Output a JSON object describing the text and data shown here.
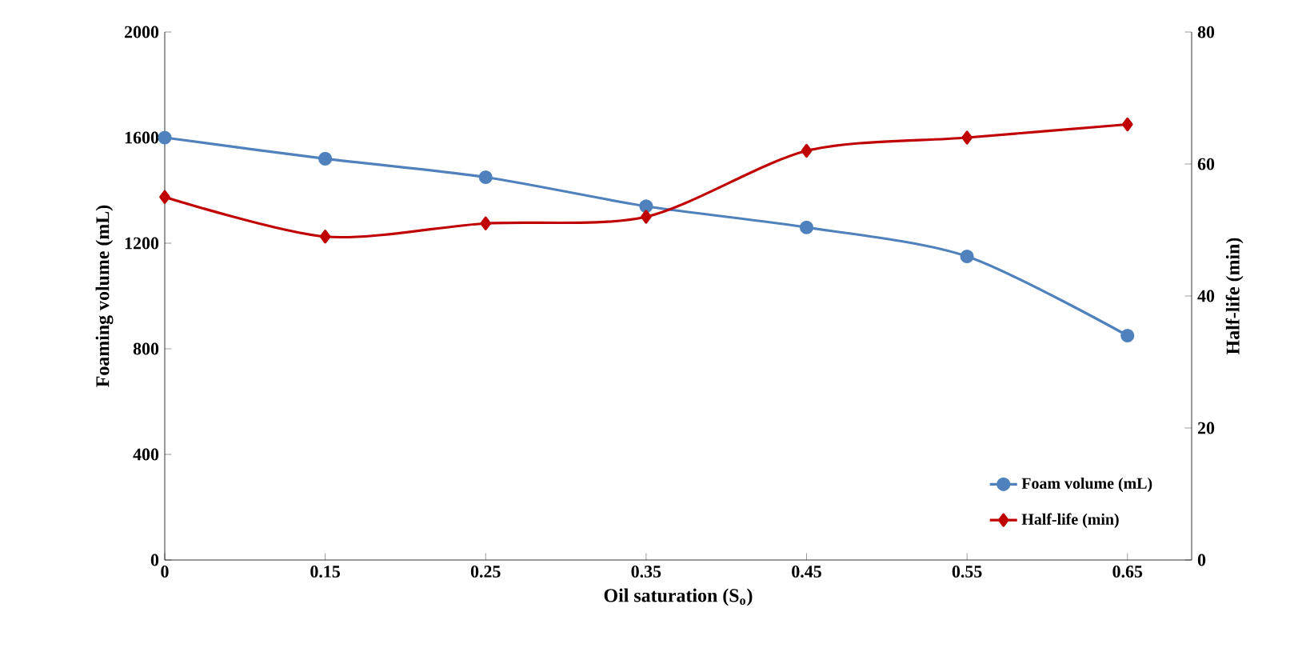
{
  "chart_data": {
    "type": "line",
    "xlabel": "Oil saturation (S$_{o}$)",
    "ylabel": "Foaming volume (mL)",
    "y2label": "Half-life (min)",
    "categories": [
      "0",
      "0.15",
      "0.25",
      "0.35",
      "0.45",
      "0.55",
      "0.65"
    ],
    "series": [
      {
        "name": "Foam volume (mL)",
        "color": "#4f81bd",
        "marker": "circle",
        "values": [
          1600,
          1520,
          1450,
          1340,
          1260,
          1150,
          850
        ]
      },
      {
        "name": "Half-life (min)",
        "color": "#c00000",
        "marker": "diamond",
        "axis": "y2",
        "values": [
          55,
          49,
          51,
          52,
          62,
          64,
          66
        ]
      }
    ],
    "ylim": [
      0,
      2000
    ],
    "yticks": [
      0,
      400,
      800,
      1200,
      1600,
      2000
    ],
    "y2lim": [
      0,
      80
    ],
    "y2ticks": [
      0,
      20,
      40,
      60,
      80
    ],
    "legend": "bottom right",
    "grid": false
  }
}
